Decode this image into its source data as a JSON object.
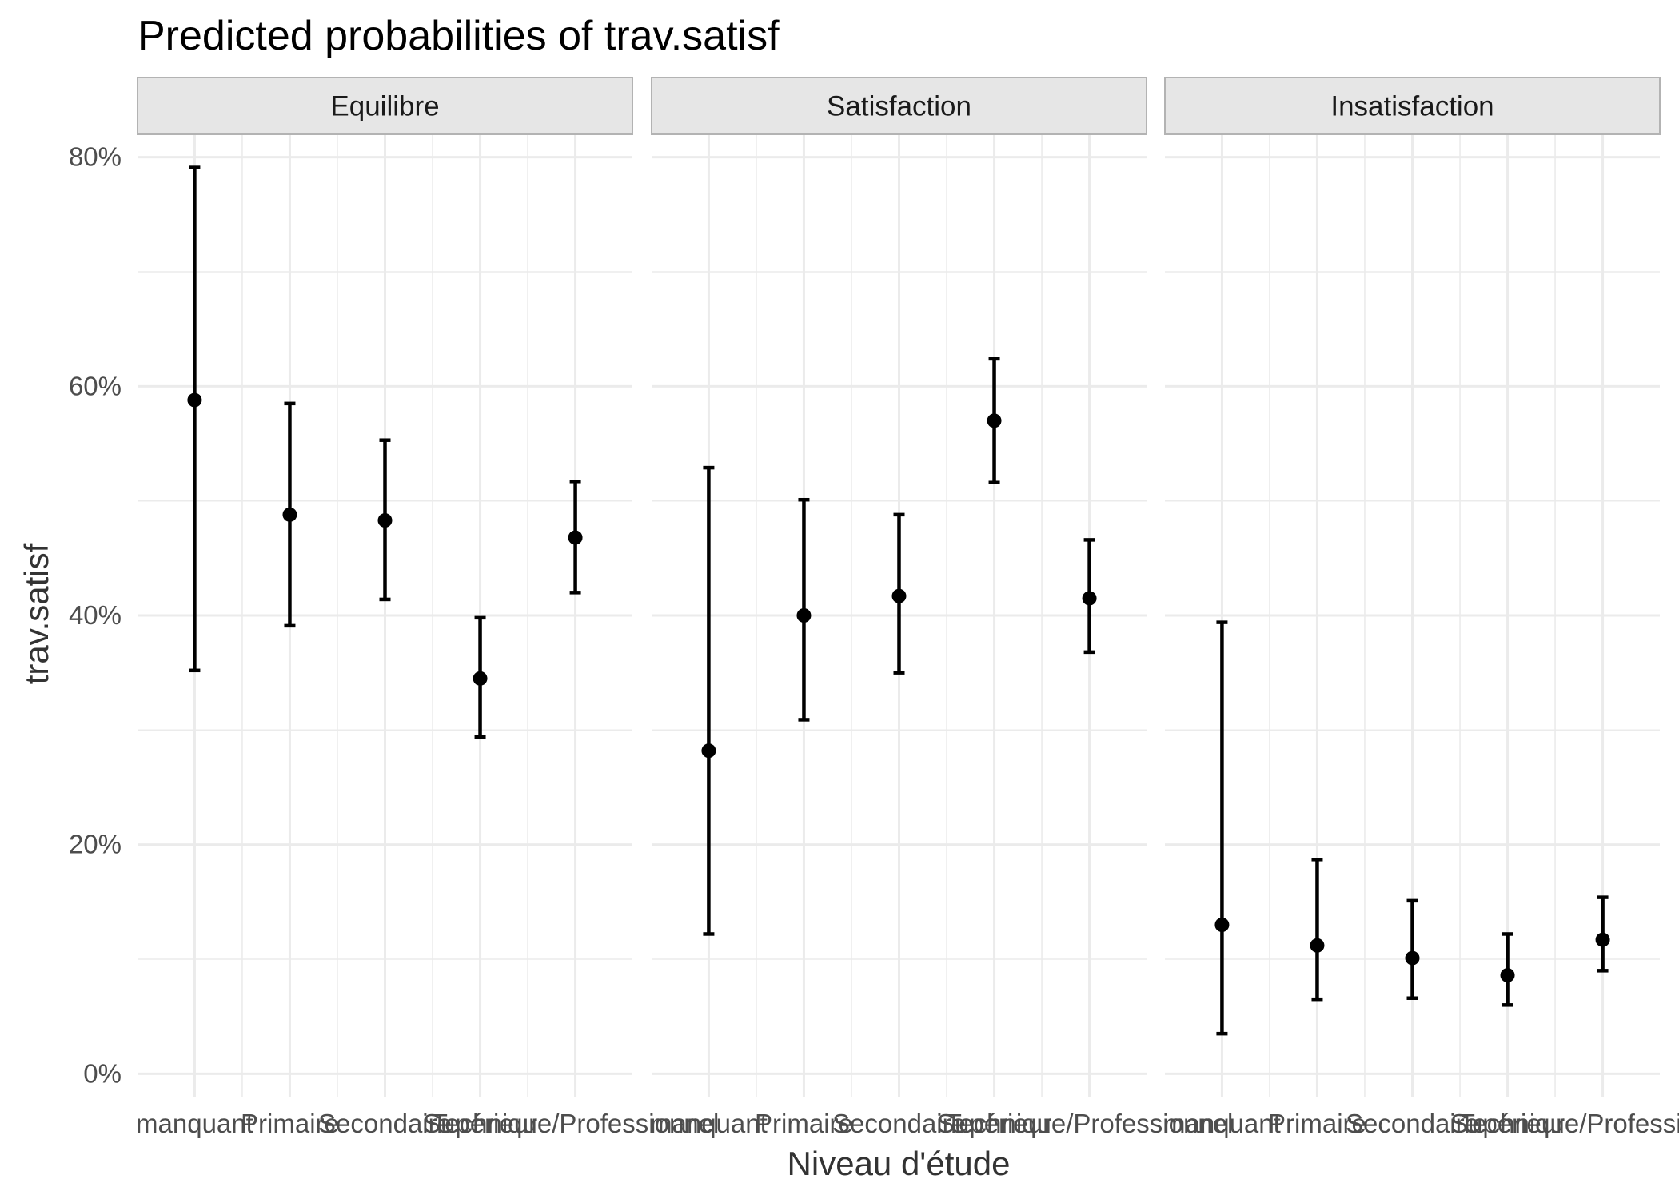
{
  "chart_data": {
    "type": "scatter",
    "subtype": "point-with-errorbars, faceted",
    "title": "Predicted probabilities of trav.satisf",
    "xlabel": "Niveau d'étude",
    "ylabel": "trav.satisf",
    "ylim": [
      0,
      0.82
    ],
    "y_ticks": [
      0,
      0.2,
      0.4,
      0.6,
      0.8
    ],
    "y_tick_labels": [
      "0%",
      "20%",
      "40%",
      "60%",
      "80%"
    ],
    "grid": true,
    "legend": "none",
    "colors": {
      "point": "#000000",
      "grid": "#ebebeb",
      "strip_fill": "#e6e6e6",
      "strip_border": "#b3b3b3"
    },
    "categories": [
      "manquant",
      "Primaire",
      "Secondaire",
      "Supérieur",
      "Technique/Professionnel"
    ],
    "x_tick_labels": [
      "manquant",
      "Primaire",
      "Secondaire",
      "Supérieur",
      "Technique/Professionnel"
    ],
    "facets": [
      {
        "label": "Equilibre",
        "values": [
          0.588,
          0.488,
          0.483,
          0.345,
          0.468
        ],
        "lower": [
          0.352,
          0.391,
          0.414,
          0.294,
          0.42
        ],
        "upper": [
          0.791,
          0.585,
          0.553,
          0.398,
          0.517
        ]
      },
      {
        "label": "Satisfaction",
        "values": [
          0.282,
          0.4,
          0.417,
          0.57,
          0.415
        ],
        "lower": [
          0.122,
          0.309,
          0.35,
          0.516,
          0.368
        ],
        "upper": [
          0.529,
          0.501,
          0.488,
          0.624,
          0.466
        ]
      },
      {
        "label": "Insatisfaction",
        "values": [
          0.13,
          0.112,
          0.101,
          0.086,
          0.117
        ],
        "lower": [
          0.035,
          0.065,
          0.066,
          0.06,
          0.09
        ],
        "upper": [
          0.394,
          0.187,
          0.151,
          0.122,
          0.154
        ]
      }
    ]
  }
}
